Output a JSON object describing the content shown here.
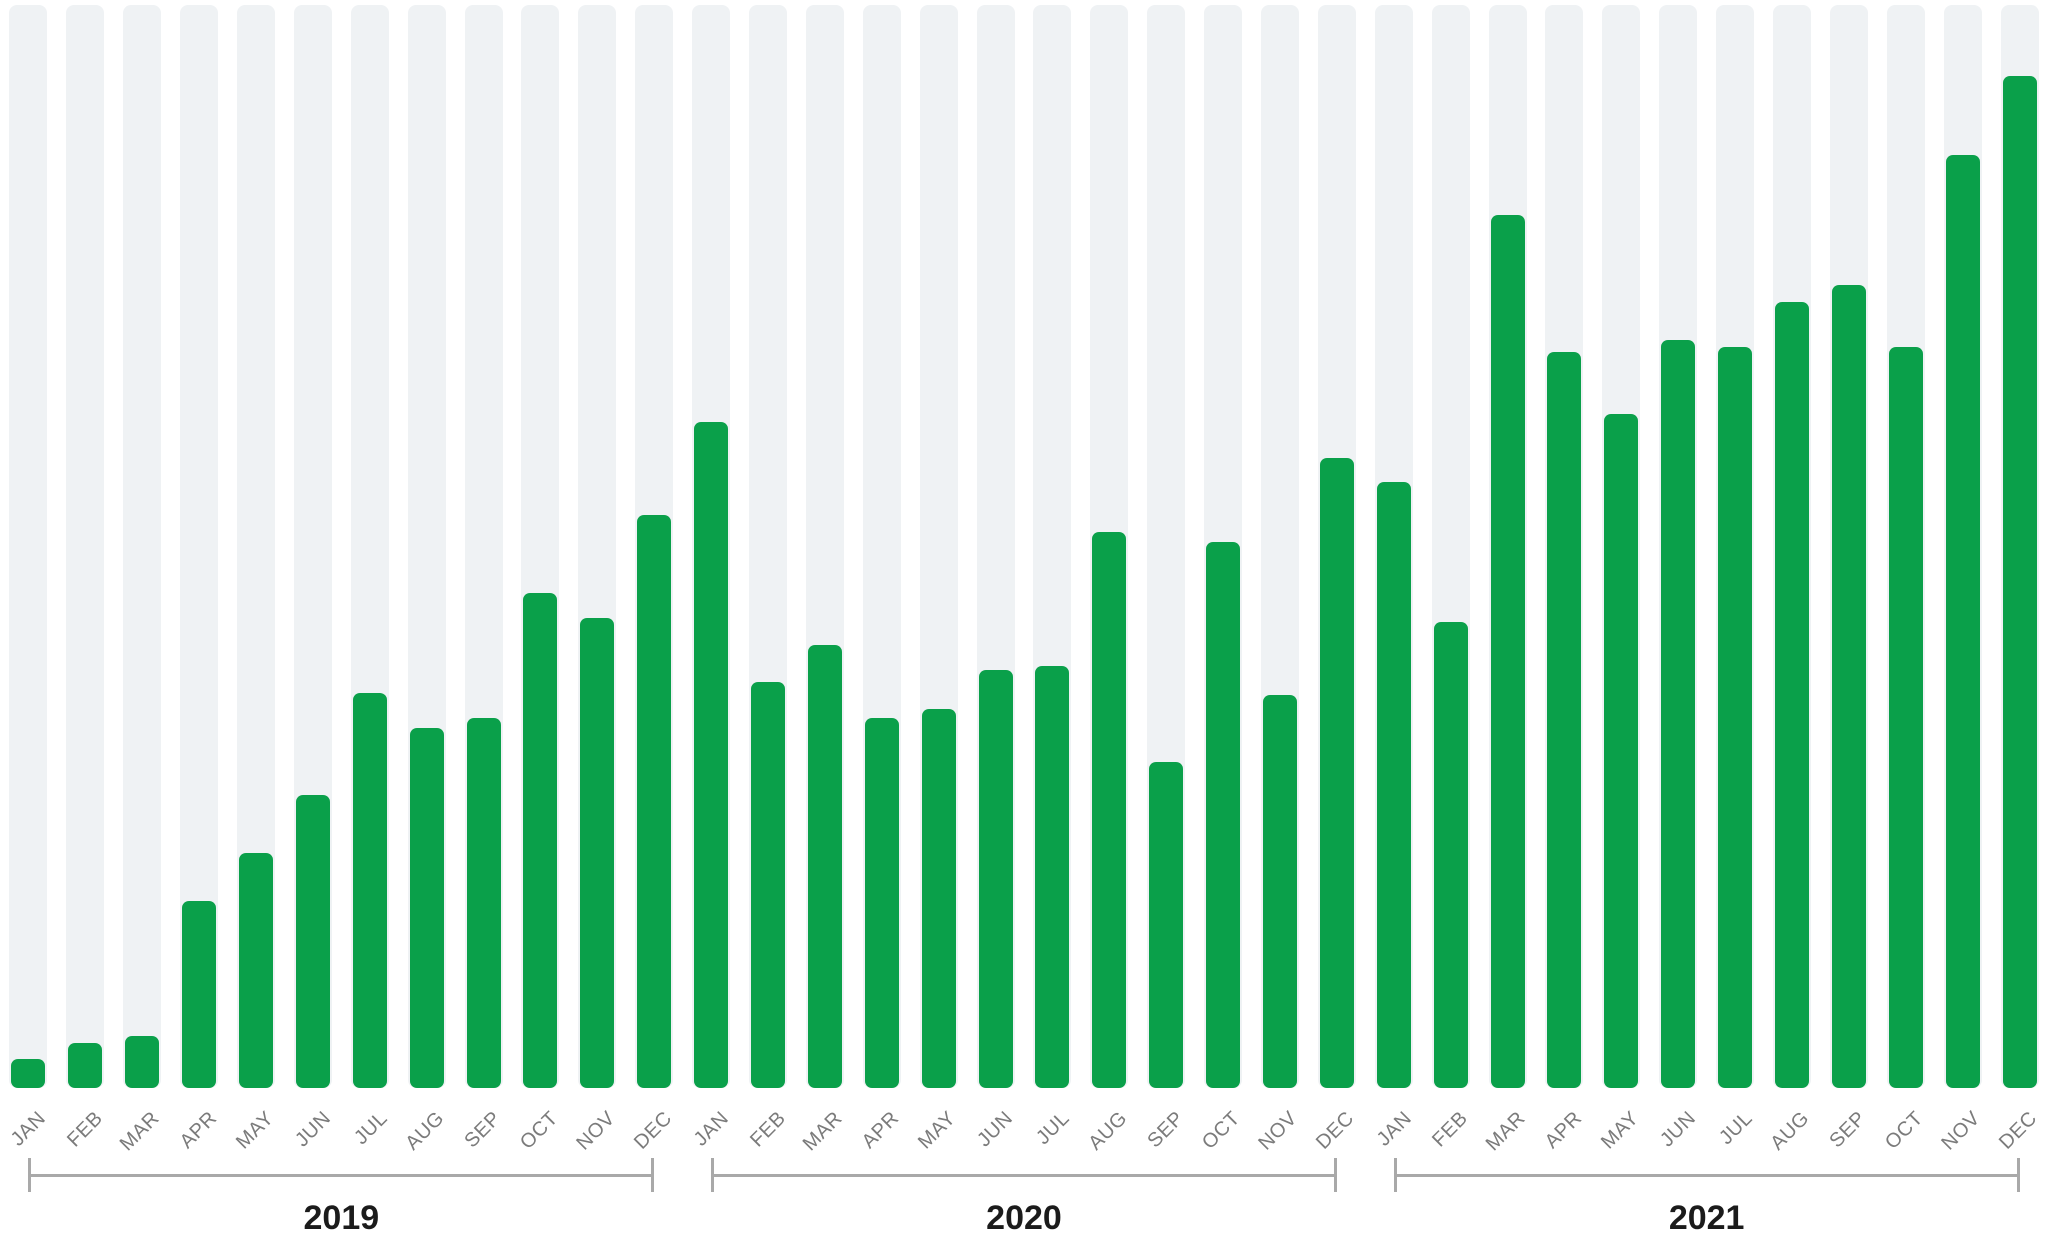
{
  "chart_data": {
    "type": "bar",
    "title": "",
    "xlabel": "",
    "ylabel": "",
    "legend": "none",
    "grid": "none (light vertical background stripe behind each bar slot, full plot height)",
    "categories_months": [
      "JAN",
      "FEB",
      "MAR",
      "APR",
      "MAY",
      "JUN",
      "JUL",
      "AUG",
      "SEP",
      "OCT",
      "NOV",
      "DEC"
    ],
    "series": [
      {
        "name": "2019",
        "values": [
          2.9,
          4.4,
          5.1,
          18.5,
          23.2,
          29.0,
          39.0,
          35.6,
          36.6,
          48.9,
          46.4,
          56.6
        ]
      },
      {
        "name": "2020",
        "values": [
          65.8,
          40.1,
          43.8,
          36.6,
          37.5,
          41.3,
          41.7,
          54.9,
          32.2,
          54.0,
          38.8,
          62.3
        ]
      },
      {
        "name": "2021",
        "values": [
          59.9,
          46.0,
          86.3,
          72.7,
          66.6,
          73.9,
          73.2,
          77.7,
          79.3,
          73.2,
          92.2,
          100.0
        ]
      }
    ],
    "ylim": [
      0,
      100
    ],
    "value_unit": "relative bar height, percent of tallest bar (DEC 2021 = 100); chart shows no numeric axis or data labels"
  },
  "colors": {
    "bar": "#0aa04a",
    "stripe": "#eff2f4",
    "month_label": "#7b7b7b",
    "year_label": "#1b1b1b",
    "bracket": "#a9a9a9",
    "background": "#ffffff"
  }
}
